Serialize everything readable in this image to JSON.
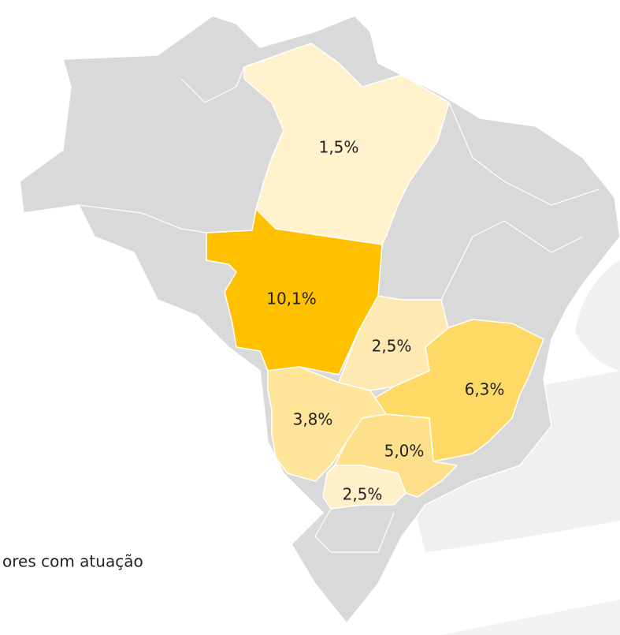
{
  "map": {
    "regions": [
      {
        "label": "1,5%",
        "color": "#fff2cc"
      },
      {
        "label": "10,1%",
        "color": "#ffc000"
      },
      {
        "label": "2,5%",
        "color": "#ffe9b3"
      },
      {
        "label": "6,3%",
        "color": "#ffd966"
      },
      {
        "label": "3,8%",
        "color": "#ffe599"
      },
      {
        "label": "5,0%",
        "color": "#ffe08a"
      },
      {
        "label": "2,5%",
        "color": "#fff0c9"
      }
    ]
  },
  "caption": "ores com atuação"
}
